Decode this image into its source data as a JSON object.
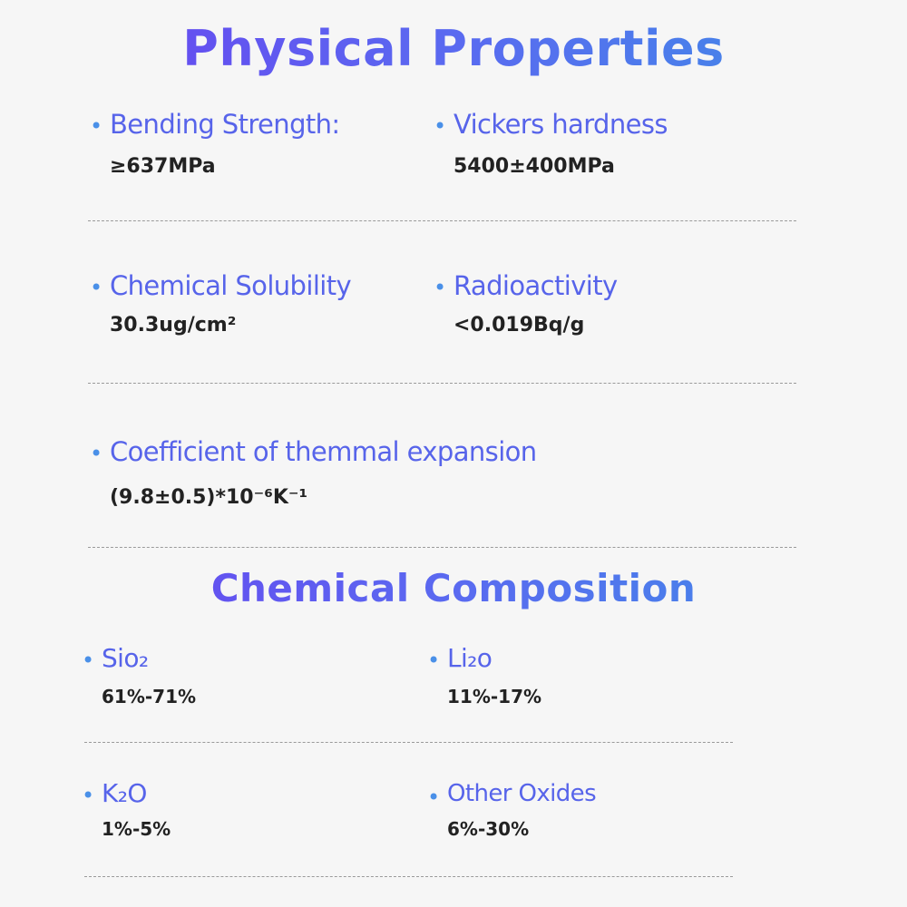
{
  "physical": {
    "title": "Physical Properties",
    "items": [
      {
        "label": "Bending Strength:",
        "value": "≥637MPa"
      },
      {
        "label": "Vickers hardness",
        "value": "5400±400MPa"
      },
      {
        "label": "Chemical Solubility",
        "value": "30.3ug/cm²"
      },
      {
        "label": "Radioactivity",
        "value": "<0.019Bq/g"
      },
      {
        "label": "Coefficient of themmal expansion",
        "value": "(9.8±0.5)*10⁻⁶K⁻¹"
      }
    ]
  },
  "chemical": {
    "title": "Chemical Composition",
    "items": [
      {
        "label": "Sio₂",
        "value": "61%-71%"
      },
      {
        "label": "Li₂o",
        "value": "11%-17%"
      },
      {
        "label": "K₂O",
        "value": "1%-5%"
      },
      {
        "label": "Other Oxides",
        "value": "6%-30%"
      }
    ]
  }
}
